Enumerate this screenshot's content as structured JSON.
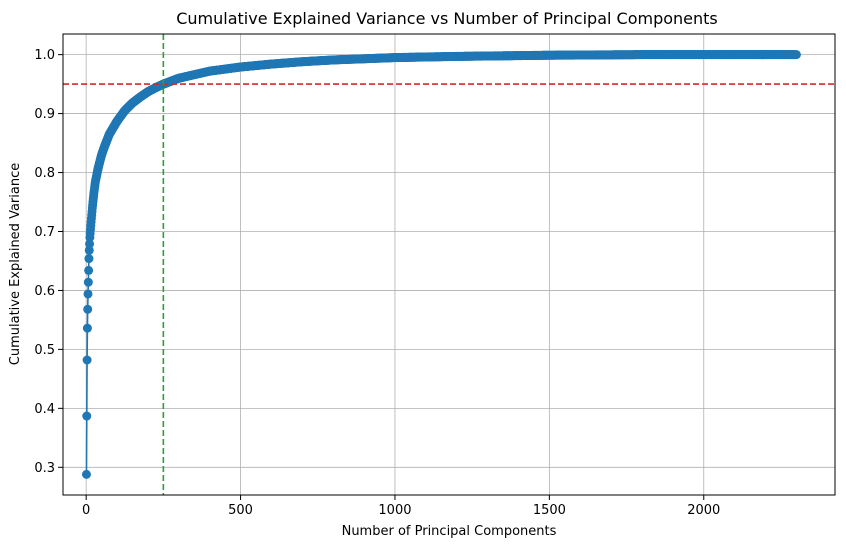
{
  "chart_data": {
    "type": "line",
    "title": "Cumulative Explained Variance vs Number of Principal Components",
    "xlabel": "Number of Principal Components",
    "ylabel": "Cumulative Explained Variance",
    "xlim": [
      -75,
      2425
    ],
    "ylim": [
      0.253,
      1.035
    ],
    "x_ticks": [
      0,
      500,
      1000,
      1500,
      2000
    ],
    "y_ticks": [
      0.3,
      0.4,
      0.5,
      0.6,
      0.7,
      0.8,
      0.9,
      1.0
    ],
    "x_tick_labels": [
      "0",
      "500",
      "1000",
      "1500",
      "2000"
    ],
    "y_tick_labels": [
      "0.3",
      "0.4",
      "0.5",
      "0.6",
      "0.7",
      "0.8",
      "0.9",
      "1.0"
    ],
    "grid": true,
    "marker": "circle",
    "n_components": 2300,
    "series": [
      {
        "color": "#1f77b4",
        "anchor_points": [
          [
            1,
            0.288
          ],
          [
            2,
            0.387
          ],
          [
            3,
            0.482
          ],
          [
            4,
            0.536
          ],
          [
            5,
            0.568
          ],
          [
            6,
            0.594
          ],
          [
            7,
            0.614
          ],
          [
            8,
            0.634
          ],
          [
            9,
            0.654
          ],
          [
            10,
            0.668
          ],
          [
            12,
            0.69
          ],
          [
            15,
            0.71
          ],
          [
            20,
            0.74
          ],
          [
            25,
            0.765
          ],
          [
            30,
            0.785
          ],
          [
            40,
            0.81
          ],
          [
            50,
            0.83
          ],
          [
            60,
            0.845
          ],
          [
            75,
            0.865
          ],
          [
            100,
            0.887
          ],
          [
            125,
            0.905
          ],
          [
            150,
            0.918
          ],
          [
            175,
            0.928
          ],
          [
            200,
            0.937
          ],
          [
            225,
            0.944
          ],
          [
            250,
            0.95
          ],
          [
            300,
            0.96
          ],
          [
            400,
            0.972
          ],
          [
            500,
            0.979
          ],
          [
            600,
            0.984
          ],
          [
            700,
            0.988
          ],
          [
            800,
            0.991
          ],
          [
            1000,
            0.995
          ],
          [
            1200,
            0.997
          ],
          [
            1500,
            0.999
          ],
          [
            1800,
            1.0
          ],
          [
            2300,
            1.0
          ]
        ]
      }
    ],
    "reference_lines": [
      {
        "orientation": "horizontal",
        "value": 0.95,
        "color": "#d62728",
        "style": "dashed"
      },
      {
        "orientation": "vertical",
        "value": 250,
        "color": "#2ca02c",
        "style": "dashed"
      }
    ]
  }
}
